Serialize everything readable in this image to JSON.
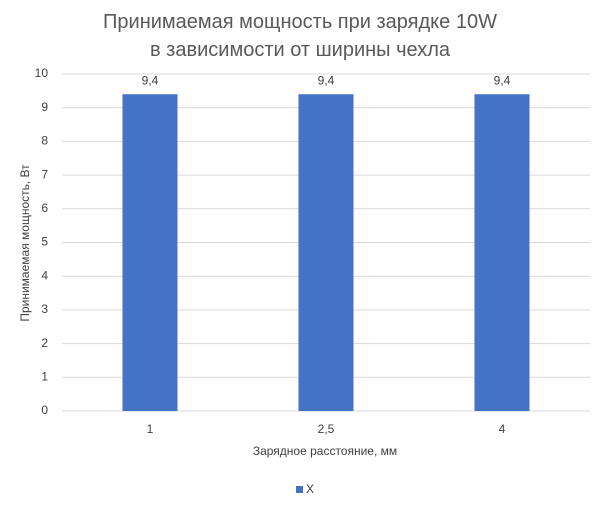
{
  "chart_data": {
    "type": "bar",
    "title": "Принимаемая мощность при зарядке 10W в зависимости от ширины чехла",
    "x_label": "Зарядное расстояние, мм",
    "y_label": "Принимаемая мощность, Вт",
    "categories": [
      "1",
      "2,5",
      "4"
    ],
    "series": [
      {
        "name": "X",
        "color": "#4472c4",
        "values": [
          9.4,
          9.4,
          9.4
        ],
        "value_labels": [
          "9,4",
          "9,4",
          "9,4"
        ]
      }
    ],
    "ylim": [
      0,
      10
    ],
    "yticks": [
      0,
      1,
      2,
      3,
      4,
      5,
      6,
      7,
      8,
      9,
      10
    ],
    "grid": true,
    "legend": "bottom"
  }
}
